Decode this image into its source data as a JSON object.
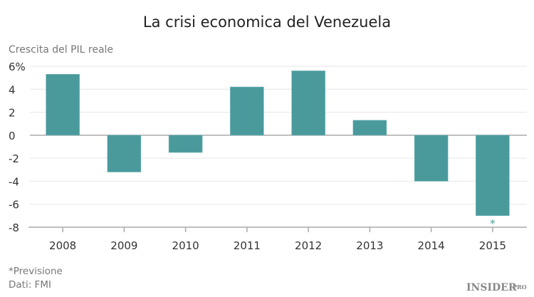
{
  "chart_data": {
    "type": "bar",
    "title": "La crisi economica del Venezuela",
    "ylabel": "Crescita del PIL reale",
    "categories": [
      "2008",
      "2009",
      "2010",
      "2011",
      "2012",
      "2013",
      "2014",
      "2015"
    ],
    "values": [
      5.3,
      -3.2,
      -1.5,
      4.2,
      5.6,
      1.3,
      -4.0,
      -7.0
    ],
    "ylim": [
      -8,
      6
    ],
    "yticks": [
      6,
      4,
      2,
      0,
      -2,
      -4,
      -6,
      -8
    ],
    "ytick_labels": [
      "6%",
      "4",
      "2",
      "0",
      "-2",
      "-4",
      "-6",
      "-8"
    ],
    "grid": true,
    "bar_color": "#4a9a9c",
    "annotations": [
      {
        "category": "2015",
        "text": "*"
      }
    ]
  },
  "footnotes": {
    "forecast": "*Previsione",
    "source": "Dati: FMI"
  },
  "logo": {
    "text": "INSIDER",
    "suffix": "PRO"
  }
}
